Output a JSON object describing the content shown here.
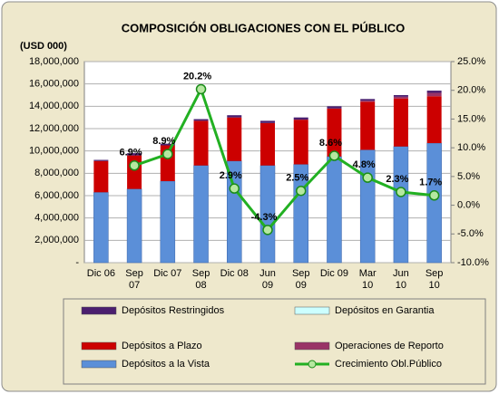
{
  "chart_data": {
    "type": "bar_line",
    "title": "COMPOSICIÓN OBLIGACIONES CON EL PÚBLICO",
    "y_axis_label": "(USD 000)",
    "categories": [
      "Dic 06",
      "Sep 07",
      "Dic 07",
      "Sep 08",
      "Dic 08",
      "Jun 09",
      "Sep 09",
      "Dic 09",
      "Mar 10",
      "Jun 10",
      "Sep 10"
    ],
    "ylim": [
      0,
      18000000
    ],
    "yticks": [
      {
        "value": 0,
        "label": "-"
      },
      {
        "value": 2000000,
        "label": "2,000,000"
      },
      {
        "value": 4000000,
        "label": "4,000,000"
      },
      {
        "value": 6000000,
        "label": "6,000,000"
      },
      {
        "value": 8000000,
        "label": "8,000,000"
      },
      {
        "value": 10000000,
        "label": "10,000,000"
      },
      {
        "value": 12000000,
        "label": "12,000,000"
      },
      {
        "value": 14000000,
        "label": "14,000,000"
      },
      {
        "value": 16000000,
        "label": "16,000,000"
      },
      {
        "value": 18000000,
        "label": "18,000,000"
      }
    ],
    "y2lim": [
      -10,
      25
    ],
    "y2ticks": [
      {
        "value": -10,
        "label": "-10.0%"
      },
      {
        "value": -5,
        "label": "-5.0%"
      },
      {
        "value": 0,
        "label": "0.0%"
      },
      {
        "value": 5,
        "label": "5.0%"
      },
      {
        "value": 10,
        "label": "10.0%"
      },
      {
        "value": 15,
        "label": "15.0%"
      },
      {
        "value": 20,
        "label": "20.0%"
      },
      {
        "value": 25,
        "label": "25.0%"
      }
    ],
    "grid": true,
    "series": [
      {
        "name": "Depósitos a la Vista",
        "color": "#5b8fd8",
        "type": "bar",
        "values": [
          6300000,
          6600000,
          7300000,
          8700000,
          9100000,
          8700000,
          8800000,
          9500000,
          10100000,
          10400000,
          10700000
        ]
      },
      {
        "name": "Depósitos a Plazo",
        "color": "#cc0000",
        "type": "bar",
        "values": [
          2800000,
          3000000,
          3200000,
          4000000,
          3900000,
          3800000,
          4000000,
          4300000,
          4300000,
          4300000,
          4200000
        ]
      },
      {
        "name": "Operaciones de Reporto",
        "color": "#993366",
        "type": "bar",
        "values": [
          0,
          0,
          0,
          0,
          0,
          0,
          0,
          0,
          100000,
          150000,
          300000
        ]
      },
      {
        "name": "Depósitos en Garantia",
        "color": "#ccffff",
        "type": "bar",
        "values": [
          0,
          0,
          0,
          0,
          0,
          0,
          0,
          0,
          0,
          0,
          0
        ]
      },
      {
        "name": "Depósitos Restringidos",
        "color": "#4b1f6f",
        "type": "bar",
        "values": [
          100000,
          200000,
          150000,
          150000,
          200000,
          200000,
          200000,
          200000,
          150000,
          150000,
          200000
        ]
      },
      {
        "name": "Crecimiento Obl.Público",
        "color": "#22b022",
        "type": "line",
        "axis": "y2",
        "values": [
          null,
          6.9,
          8.9,
          20.2,
          2.9,
          -4.3,
          2.5,
          8.6,
          4.8,
          2.3,
          1.7
        ],
        "value_labels": [
          null,
          "6.9%",
          "8.9%",
          "20.2%",
          "2.9%",
          "-4.3%",
          "2.5%",
          "8.6%",
          "4.8%",
          "2.3%",
          "1.7%"
        ]
      }
    ]
  }
}
